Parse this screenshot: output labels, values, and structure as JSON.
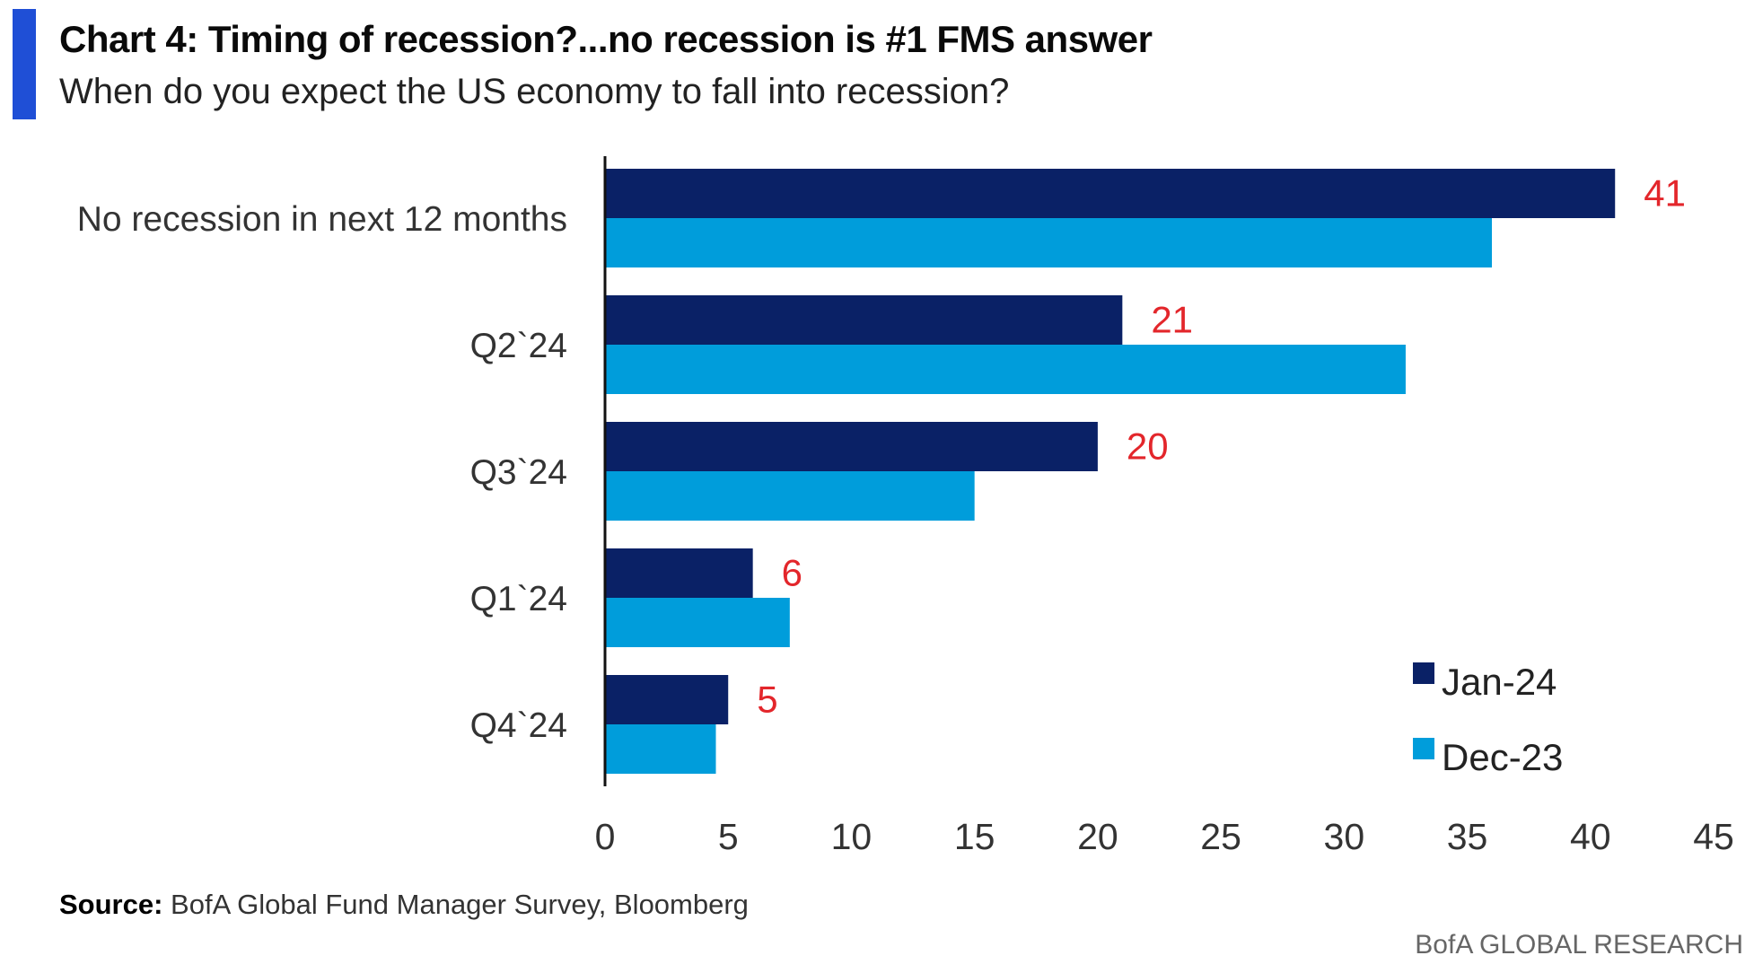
{
  "header": {
    "title": "Chart 4: Timing of recession?...no recession is #1 FMS answer",
    "subtitle": "When do you expect the US economy to fall into recession?",
    "accent_color": "#1f4fd6"
  },
  "footer": {
    "source_label": "Source:",
    "source_text": " BofA Global Fund Manager Survey, Bloomberg",
    "brand": "BofA GLOBAL RESEARCH"
  },
  "chart_data": {
    "type": "bar",
    "orientation": "horizontal",
    "categories": [
      "No recession in next 12 months",
      "Q2`24",
      "Q3`24",
      "Q1`24",
      "Q4`24"
    ],
    "series": [
      {
        "name": "Jan-24",
        "color": "#0a2166",
        "values": [
          41,
          21,
          20,
          6,
          5
        ]
      },
      {
        "name": "Dec-23",
        "color": "#009ddb",
        "values": [
          36,
          32.5,
          15,
          7.5,
          4.5
        ]
      }
    ],
    "data_labels": {
      "series": "Jan-24",
      "color": "#e3262b",
      "values": [
        "41",
        "21",
        "20",
        "6",
        "5"
      ]
    },
    "xlim": [
      0,
      45
    ],
    "xticks": [
      "0",
      "5",
      "10",
      "15",
      "20",
      "25",
      "30",
      "35",
      "40",
      "45"
    ],
    "grid": false,
    "legend_position": "bottom-right"
  }
}
